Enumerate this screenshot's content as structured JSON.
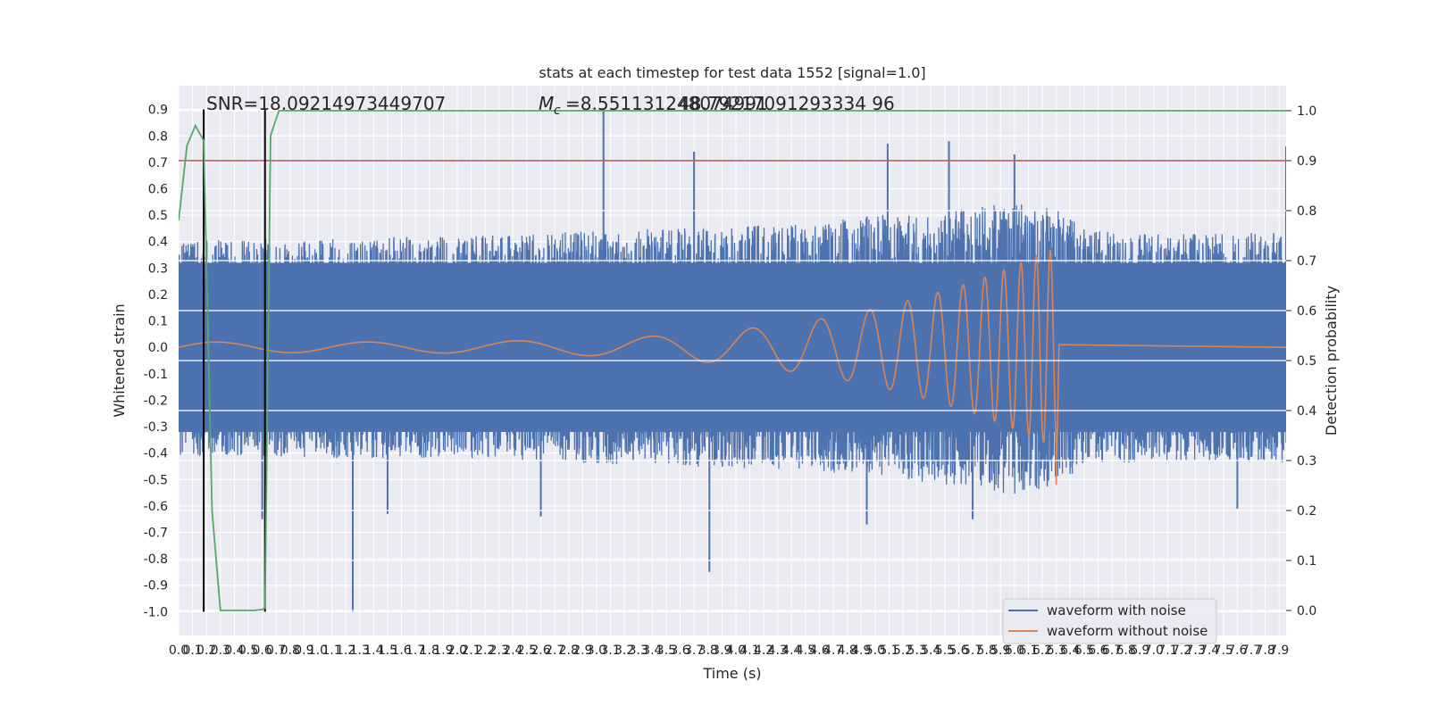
{
  "chart_data": {
    "type": "line",
    "title": "stats at each timestep for test data 1552 [signal=1.0]",
    "xlabel": "Time (s)",
    "ylabel": "Whitened strain",
    "y2label": "Detection probability",
    "annotation_snr": "SNR=18.09214973449707",
    "annotation_mc_prefix": "M",
    "annotation_mc_sub": "c",
    "annotation_mc_value": "=8.551131248074991",
    "annotation_overlap": "48.79217091293334 96",
    "xlim": [
      0.0,
      7.95
    ],
    "ylim": [
      -1.09,
      0.99
    ],
    "y2lim": [
      -0.05,
      1.05
    ],
    "x_ticks": [
      0.0,
      0.1,
      0.2,
      0.3,
      0.4,
      0.5,
      0.6,
      0.7,
      0.8,
      0.9,
      1.0,
      1.1,
      1.2,
      1.3,
      1.4,
      1.5,
      1.6,
      1.7,
      1.8,
      1.9,
      2.0,
      2.1,
      2.2,
      2.3,
      2.4,
      2.5,
      2.6,
      2.7,
      2.8,
      2.9,
      3.0,
      3.1,
      3.2,
      3.3,
      3.4,
      3.5,
      3.6,
      3.7,
      3.8,
      3.9,
      4.0,
      4.1,
      4.2,
      4.3,
      4.4,
      4.5,
      4.6,
      4.7,
      4.8,
      4.9,
      5.0,
      5.1,
      5.2,
      5.3,
      5.4,
      5.5,
      5.6,
      5.7,
      5.8,
      5.9,
      6.0,
      6.1,
      6.2,
      6.3,
      6.4,
      6.5,
      6.6,
      6.7,
      6.8,
      6.9,
      7.0,
      7.1,
      7.2,
      7.3,
      7.4,
      7.5,
      7.6,
      7.7,
      7.8,
      7.9
    ],
    "y_ticks": [
      -1.0,
      -0.9,
      -0.8,
      -0.7,
      -0.6,
      -0.5,
      -0.4,
      -0.3,
      -0.2,
      -0.1,
      0.0,
      0.1,
      0.2,
      0.3,
      0.4,
      0.5,
      0.6,
      0.7,
      0.8,
      0.9
    ],
    "y2_ticks": [
      0.0,
      0.1,
      0.2,
      0.3,
      0.4,
      0.5,
      0.6,
      0.7,
      0.8,
      0.9,
      1.0
    ],
    "threshold_y2": 0.9,
    "vertical_lines_x": [
      0.18,
      0.62
    ],
    "detection_probability": {
      "x": [
        0.0,
        0.06,
        0.12,
        0.18,
        0.24,
        0.3,
        0.36,
        0.42,
        0.48,
        0.54,
        0.6,
        0.62,
        0.66,
        0.72,
        0.78,
        7.95
      ],
      "y": [
        0.78,
        0.93,
        0.97,
        0.94,
        0.2,
        0.0,
        0.0,
        0.0,
        0.0,
        0.0,
        0.002,
        0.005,
        0.95,
        1.0,
        1.0,
        1.0
      ]
    },
    "noisy_envelope": {
      "x": [
        0.0,
        0.5,
        1.0,
        1.5,
        2.0,
        2.5,
        3.0,
        3.5,
        4.0,
        4.5,
        5.0,
        5.5,
        6.0,
        6.3,
        6.5,
        7.0,
        7.5,
        7.95
      ],
      "upper": [
        0.4,
        0.41,
        0.41,
        0.42,
        0.42,
        0.43,
        0.44,
        0.45,
        0.46,
        0.47,
        0.5,
        0.52,
        0.56,
        0.52,
        0.45,
        0.43,
        0.43,
        0.44
      ],
      "lower": [
        -0.41,
        -0.41,
        -0.42,
        -0.42,
        -0.42,
        -0.43,
        -0.44,
        -0.45,
        -0.46,
        -0.47,
        -0.49,
        -0.52,
        -0.56,
        -0.52,
        -0.45,
        -0.43,
        -0.43,
        -0.44
      ]
    },
    "noisy_spikes": [
      {
        "x": 3.05,
        "y": 0.9
      },
      {
        "x": 3.81,
        "y": -0.85
      },
      {
        "x": 1.25,
        "y": -1.0
      },
      {
        "x": 7.95,
        "y": 0.76
      },
      {
        "x": 5.53,
        "y": 0.78
      },
      {
        "x": 5.09,
        "y": 0.77
      },
      {
        "x": 6.0,
        "y": 0.73
      },
      {
        "x": 3.7,
        "y": 0.74
      },
      {
        "x": 0.6,
        "y": -0.65
      },
      {
        "x": 4.94,
        "y": -0.67
      },
      {
        "x": 5.7,
        "y": -0.65
      },
      {
        "x": 1.5,
        "y": -0.63
      },
      {
        "x": 2.6,
        "y": -0.64
      },
      {
        "x": 7.6,
        "y": -0.61
      }
    ],
    "clean_waveform": {
      "start_x": 0.0,
      "merger_x": 6.3,
      "end_x": 7.95,
      "start_amplitude": 0.02,
      "peak_amplitude": 0.38,
      "min_value": -0.52,
      "start_freq_hz": 20.5,
      "end_freq_hz": 240
    },
    "legend_location": "lower right",
    "series": [
      {
        "name": "waveform with noise",
        "color": "#4c72b0"
      },
      {
        "name": "waveform without noise",
        "color": "#dd8452"
      }
    ],
    "colors": {
      "axes_background": "#eaeaf2",
      "grid": "#ffffff",
      "noisy": "#4c72b0",
      "clean": "#dd8452",
      "probability": "#55a868",
      "threshold": "#c44e52",
      "marker_lines": "#000000"
    },
    "grid": true
  }
}
